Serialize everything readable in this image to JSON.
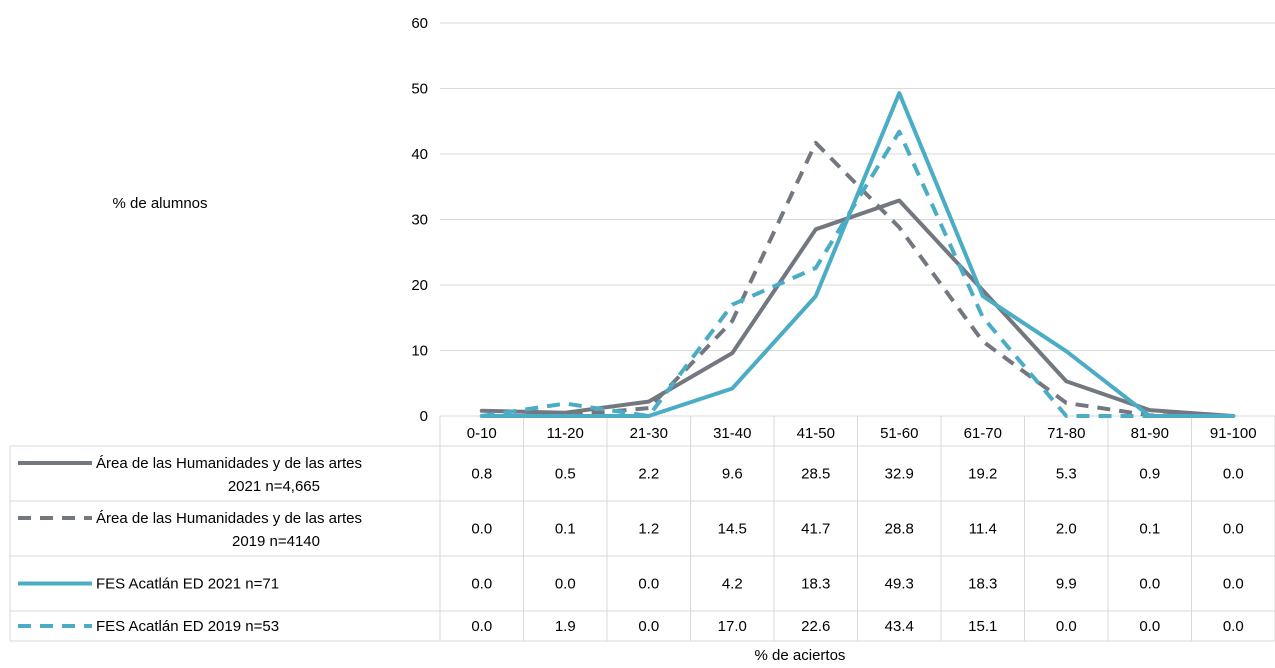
{
  "chart_data": {
    "type": "line",
    "ylabel": "% de alumnos",
    "xlabel": "% de aciertos",
    "ylim": [
      0,
      60
    ],
    "yticks": [
      0,
      10,
      20,
      30,
      40,
      50,
      60
    ],
    "grid": true,
    "legend": "data-table-left",
    "categories": [
      "0-10",
      "11-20",
      "21-30",
      "31-40",
      "41-50",
      "51-60",
      "61-70",
      "71-80",
      "81-90",
      "91-100"
    ],
    "series": [
      {
        "name_line1": "Área de las Humanidades y de las artes",
        "name_line2": "2021 n=4,665",
        "color": "#737880",
        "dash": "solid",
        "values": [
          0.8,
          0.5,
          2.2,
          9.6,
          28.5,
          32.9,
          19.2,
          5.3,
          0.9,
          0.0
        ],
        "value_labels": [
          "0.8",
          "0.5",
          "2.2",
          "9.6",
          "28.5",
          "32.9",
          "19.2",
          "5.3",
          "0.9",
          "0.0"
        ]
      },
      {
        "name_line1": "Área de las Humanidades y de las artes",
        "name_line2": "2019 n=4140",
        "color": "#737880",
        "dash": "dashed",
        "values": [
          0.0,
          0.1,
          1.2,
          14.5,
          41.7,
          28.8,
          11.4,
          2.0,
          0.1,
          0.0
        ],
        "value_labels": [
          "0.0",
          "0.1",
          "1.2",
          "14.5",
          "41.7",
          "28.8",
          "11.4",
          "2.0",
          "0.1",
          "0.0"
        ]
      },
      {
        "name_line1": "FES Acatlán ED 2021 n=71",
        "name_line2": "",
        "color": "#4bacc6",
        "dash": "solid",
        "values": [
          0.0,
          0.0,
          0.0,
          4.2,
          18.3,
          49.3,
          18.3,
          9.9,
          0.0,
          0.0
        ],
        "value_labels": [
          "0.0",
          "0.0",
          "0.0",
          "4.2",
          "18.3",
          "49.3",
          "18.3",
          "9.9",
          "0.0",
          "0.0"
        ]
      },
      {
        "name_line1": "FES Acatlán ED 2019 n=53",
        "name_line2": "",
        "color": "#4bacc6",
        "dash": "dashed",
        "values": [
          0.0,
          1.9,
          0.0,
          17.0,
          22.6,
          43.4,
          15.1,
          0.0,
          0.0,
          0.0
        ],
        "value_labels": [
          "0.0",
          "1.9",
          "0.0",
          "17.0",
          "22.6",
          "43.4",
          "15.1",
          "0.0",
          "0.0",
          "0.0"
        ]
      }
    ]
  }
}
